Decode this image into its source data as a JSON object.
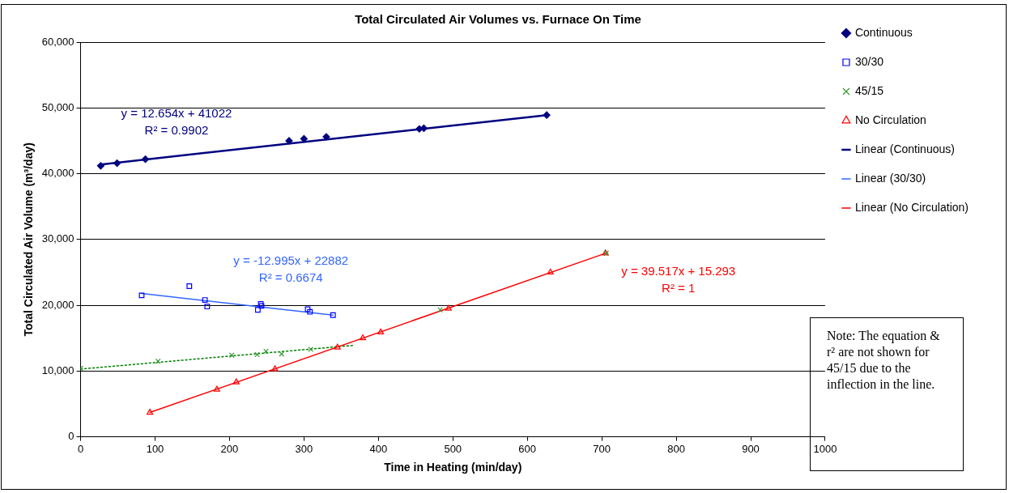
{
  "chart_data": {
    "type": "scatter",
    "title": "Total Circulated Air Volumes vs. Furnace On Time",
    "xlabel": "Time in Heating (min/day)",
    "ylabel": "Total Circulated Air Volume (m³/day)",
    "series": [
      {
        "name": "Continuous",
        "type": "scatter",
        "marker": "diamond",
        "color": "#000080",
        "x": [
          27,
          49,
          87,
          280,
          300,
          330,
          455,
          461,
          626
        ],
        "values": [
          41200,
          41600,
          42200,
          45000,
          45300,
          45600,
          46800,
          46900,
          48900
        ]
      },
      {
        "name": "30/30",
        "type": "scatter",
        "marker": "square",
        "color": "#0000ff",
        "x": [
          82,
          146,
          167,
          170,
          238,
          242,
          243,
          305,
          308,
          339
        ],
        "values": [
          21500,
          22900,
          20800,
          19800,
          19300,
          20200,
          19900,
          19400,
          19000,
          18500
        ]
      },
      {
        "name": "45/15",
        "type": "scatter",
        "marker": "cross",
        "color": "#339933",
        "x": [
          0,
          104,
          203,
          237,
          249,
          270,
          309,
          483,
          706
        ],
        "values": [
          10400,
          11500,
          12400,
          12500,
          13000,
          12600,
          13300,
          19300,
          27900
        ]
      },
      {
        "name": "No Circulation",
        "type": "scatter",
        "marker": "triangle",
        "color": "#ff0000",
        "x": [
          93,
          183,
          209,
          261,
          345,
          379,
          403,
          494,
          631,
          705
        ],
        "values": [
          3700,
          7200,
          8300,
          10300,
          13600,
          15000,
          15900,
          19500,
          25000,
          27900
        ]
      },
      {
        "name": "Linear (Continuous)",
        "type": "line",
        "marker": "none",
        "line_style": "solid",
        "color": "#000080",
        "x": [
          27,
          626
        ],
        "values": [
          41400,
          48900
        ]
      },
      {
        "name": "Linear (30/30)",
        "type": "line",
        "marker": "none",
        "line_style": "solid",
        "color": "#3366ff",
        "x": [
          82,
          339
        ],
        "values": [
          21800,
          18500
        ]
      },
      {
        "name": "Linear (No Circulation)",
        "type": "line",
        "marker": "none",
        "line_style": "solid",
        "color": "#ff0000",
        "x": [
          93,
          705
        ],
        "values": [
          3700,
          27900
        ]
      },
      {
        "type": "line",
        "marker": "none",
        "line_style": "dotted",
        "color": "#008000",
        "x": [
          0,
          366
        ],
        "values": [
          10300,
          13900
        ]
      }
    ],
    "xlim": [
      0,
      1000
    ],
    "xticks": [
      0,
      100,
      200,
      300,
      400,
      500,
      600,
      700,
      800,
      900,
      1000
    ],
    "ylim": [
      0,
      60000
    ],
    "yticks": [
      {
        "value": 0,
        "label": "0"
      },
      {
        "value": 10000,
        "label": "10,000"
      },
      {
        "value": 20000,
        "label": "20,000"
      },
      {
        "value": 30000,
        "label": "30,000"
      },
      {
        "value": 40000,
        "label": "40,000"
      },
      {
        "value": 50000,
        "label": "50,000"
      },
      {
        "value": 60000,
        "label": "60,000"
      }
    ],
    "grid": "y",
    "legend": "right",
    "annotations": [
      "y = 12.654x + 41022",
      "R² = 0.9902",
      "y = -12.995x + 22882",
      "R² = 0.6674",
      "y = 39.517x + 15.293",
      "R² = 1",
      "Note:  The equation & r² are not shown for 45/15 due to the inflection in the line."
    ]
  }
}
